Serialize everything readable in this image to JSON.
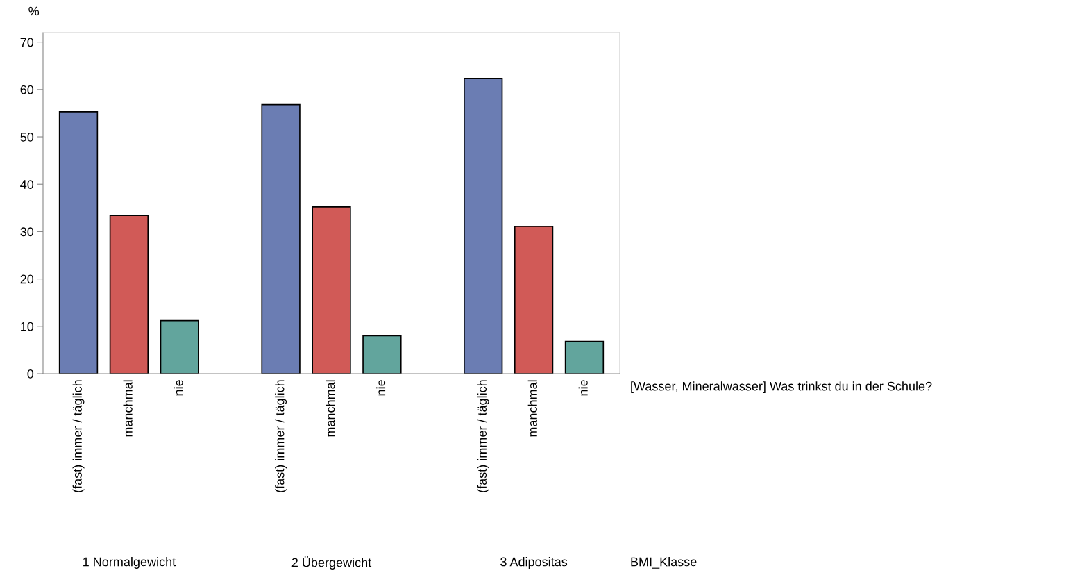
{
  "chart_data": {
    "type": "bar",
    "categories": [
      "(fast) immer / täglich",
      "manchmal",
      "nie",
      null,
      "(fast) immer / täglich",
      "manchmal",
      "nie",
      null,
      "(fast) immer / täglich",
      "manchmal",
      "nie"
    ],
    "values": [
      55.3,
      33.4,
      11.2,
      null,
      56.8,
      35.2,
      8.0,
      null,
      62.3,
      31.1,
      6.8
    ],
    "colors": [
      "#6b7db3",
      "#d15a57",
      "#62a59d",
      null,
      "#6b7db3",
      "#d15a57",
      "#62a59d",
      null,
      "#6b7db3",
      "#d15a57",
      "#62a59d"
    ],
    "ylabel": "%",
    "annotations": [
      "1 Normalgewicht",
      "2 Übergewicht",
      "3 Adipositas",
      "[Wasser, Mineralwasser] Was trinkst du in der Schule?",
      "BMI_Klasse"
    ],
    "ylim": [
      0,
      72
    ],
    "yticks": [
      0,
      10,
      20,
      30,
      40,
      50,
      60,
      70
    ],
    "grid": false,
    "legend": false
  }
}
